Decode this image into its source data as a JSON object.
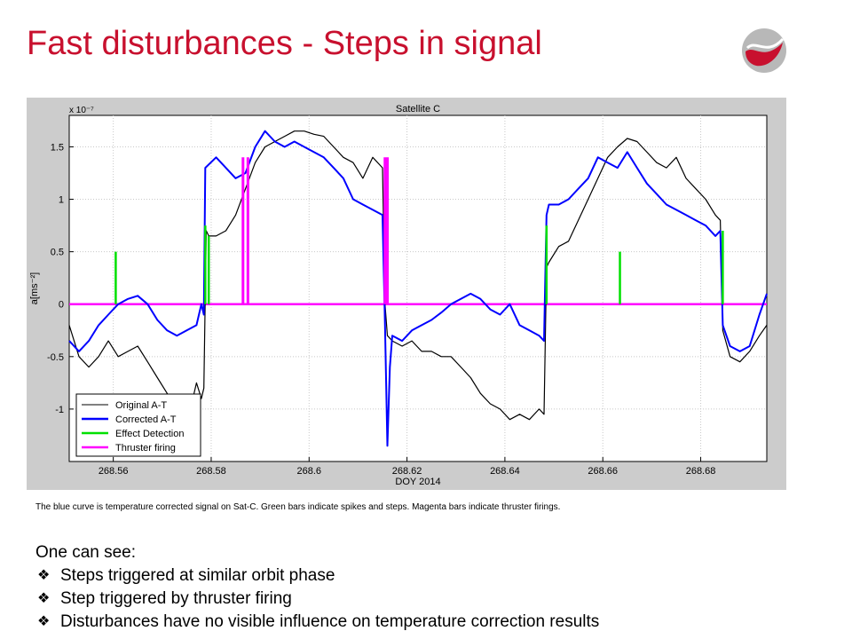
{
  "slide": {
    "title": "Fast disturbances - Steps in signal",
    "caption": "The blue curve is temperature corrected signal on Sat-C. Green bars indicate spikes and steps. Magenta bars indicate thruster firings.",
    "notes_heading": "One can see:",
    "bullets": [
      "Steps triggered at similar orbit phase",
      "Step triggered by thruster firing",
      "Disturbances have no visible influence on temperature correction results"
    ],
    "bullet_icon": "diamond-bullet-icon",
    "logo_icon": "swoosh-logo-icon"
  },
  "colors": {
    "title": "#c8102e",
    "original": "#000000",
    "corrected": "#0000ff",
    "effect": "#00e000",
    "thruster": "#ff00ff"
  },
  "chart_data": {
    "type": "line",
    "title": "Satellite C",
    "xlabel": "DOY 2014",
    "ylabel": "a[ms⁻²]",
    "y_exponent_label": "x 10⁻⁷",
    "y_scale": 1e-07,
    "xlim": [
      268.551,
      268.6935
    ],
    "ylim": [
      -1.5,
      1.8
    ],
    "xticks": [
      268.56,
      268.58,
      268.6,
      268.62,
      268.64,
      268.66,
      268.68
    ],
    "xtick_labels": [
      "268.56",
      "268.58",
      "268.6",
      "268.62",
      "268.64",
      "268.66",
      "268.68"
    ],
    "yticks": [
      -1,
      -0.5,
      0,
      0.5,
      1,
      1.5
    ],
    "ytick_labels": [
      "-1",
      "-0.5",
      "0",
      "0.5",
      "1",
      "1.5"
    ],
    "grid": true,
    "legend_position": "bottom-left",
    "legend": [
      "Original A-T",
      "Corrected A-T",
      "Effect Detection",
      "Thruster firing"
    ],
    "series": [
      {
        "name": "Original A-T",
        "points": [
          [
            268.551,
            -0.2
          ],
          [
            268.553,
            -0.5
          ],
          [
            268.555,
            -0.6
          ],
          [
            268.557,
            -0.5
          ],
          [
            268.559,
            -0.35
          ],
          [
            268.561,
            -0.5
          ],
          [
            268.563,
            -0.45
          ],
          [
            268.565,
            -0.4
          ],
          [
            268.567,
            -0.55
          ],
          [
            268.569,
            -0.7
          ],
          [
            268.571,
            -0.85
          ],
          [
            268.573,
            -1.0
          ],
          [
            268.575,
            -1.1
          ],
          [
            268.576,
            -0.95
          ],
          [
            268.577,
            -0.75
          ],
          [
            268.578,
            -0.9
          ],
          [
            268.5785,
            -0.8
          ],
          [
            268.579,
            0.7
          ],
          [
            268.5795,
            0.65
          ],
          [
            268.581,
            0.65
          ],
          [
            268.583,
            0.7
          ],
          [
            268.585,
            0.85
          ],
          [
            268.587,
            1.1
          ],
          [
            268.589,
            1.35
          ],
          [
            268.591,
            1.5
          ],
          [
            268.593,
            1.55
          ],
          [
            268.595,
            1.6
          ],
          [
            268.597,
            1.65
          ],
          [
            268.599,
            1.65
          ],
          [
            268.601,
            1.62
          ],
          [
            268.603,
            1.6
          ],
          [
            268.605,
            1.5
          ],
          [
            268.607,
            1.4
          ],
          [
            268.609,
            1.35
          ],
          [
            268.611,
            1.2
          ],
          [
            268.613,
            1.4
          ],
          [
            268.615,
            1.3
          ],
          [
            268.6155,
            0.0
          ],
          [
            268.616,
            -0.3
          ],
          [
            268.617,
            -0.35
          ],
          [
            268.619,
            -0.4
          ],
          [
            268.621,
            -0.35
          ],
          [
            268.623,
            -0.45
          ],
          [
            268.625,
            -0.45
          ],
          [
            268.627,
            -0.5
          ],
          [
            268.629,
            -0.5
          ],
          [
            268.631,
            -0.6
          ],
          [
            268.633,
            -0.7
          ],
          [
            268.635,
            -0.85
          ],
          [
            268.637,
            -0.95
          ],
          [
            268.639,
            -1.0
          ],
          [
            268.641,
            -1.1
          ],
          [
            268.643,
            -1.05
          ],
          [
            268.645,
            -1.1
          ],
          [
            268.647,
            -1.0
          ],
          [
            268.648,
            -1.05
          ],
          [
            268.6485,
            0.35
          ],
          [
            268.649,
            0.4
          ],
          [
            268.651,
            0.55
          ],
          [
            268.653,
            0.6
          ],
          [
            268.655,
            0.8
          ],
          [
            268.657,
            1.0
          ],
          [
            268.659,
            1.2
          ],
          [
            268.661,
            1.4
          ],
          [
            268.663,
            1.5
          ],
          [
            268.665,
            1.58
          ],
          [
            268.667,
            1.55
          ],
          [
            268.669,
            1.45
          ],
          [
            268.671,
            1.35
          ],
          [
            268.673,
            1.3
          ],
          [
            268.675,
            1.4
          ],
          [
            268.677,
            1.2
          ],
          [
            268.679,
            1.1
          ],
          [
            268.681,
            1.0
          ],
          [
            268.683,
            0.85
          ],
          [
            268.684,
            0.8
          ],
          [
            268.6845,
            -0.25
          ],
          [
            268.686,
            -0.5
          ],
          [
            268.688,
            -0.55
          ],
          [
            268.69,
            -0.45
          ],
          [
            268.692,
            -0.3
          ],
          [
            268.6935,
            -0.2
          ]
        ]
      },
      {
        "name": "Corrected A-T",
        "points": [
          [
            268.551,
            -0.35
          ],
          [
            268.553,
            -0.45
          ],
          [
            268.555,
            -0.35
          ],
          [
            268.557,
            -0.2
          ],
          [
            268.559,
            -0.1
          ],
          [
            268.561,
            0.0
          ],
          [
            268.563,
            0.05
          ],
          [
            268.565,
            0.08
          ],
          [
            268.567,
            0.0
          ],
          [
            268.569,
            -0.15
          ],
          [
            268.571,
            -0.25
          ],
          [
            268.573,
            -0.3
          ],
          [
            268.575,
            -0.25
          ],
          [
            268.577,
            -0.2
          ],
          [
            268.578,
            0.0
          ],
          [
            268.5785,
            -0.1
          ],
          [
            268.5788,
            1.3
          ],
          [
            268.581,
            1.4
          ],
          [
            268.583,
            1.3
          ],
          [
            268.585,
            1.2
          ],
          [
            268.587,
            1.25
          ],
          [
            268.589,
            1.5
          ],
          [
            268.591,
            1.65
          ],
          [
            268.593,
            1.55
          ],
          [
            268.595,
            1.5
          ],
          [
            268.597,
            1.55
          ],
          [
            268.599,
            1.5
          ],
          [
            268.601,
            1.45
          ],
          [
            268.603,
            1.4
          ],
          [
            268.605,
            1.3
          ],
          [
            268.607,
            1.2
          ],
          [
            268.609,
            1.0
          ],
          [
            268.611,
            0.95
          ],
          [
            268.613,
            0.9
          ],
          [
            268.615,
            0.85
          ],
          [
            268.6155,
            -0.2
          ],
          [
            268.616,
            -1.35
          ],
          [
            268.6165,
            -0.6
          ],
          [
            268.617,
            -0.3
          ],
          [
            268.619,
            -0.35
          ],
          [
            268.621,
            -0.25
          ],
          [
            268.623,
            -0.2
          ],
          [
            268.625,
            -0.15
          ],
          [
            268.627,
            -0.08
          ],
          [
            268.629,
            0.0
          ],
          [
            268.631,
            0.05
          ],
          [
            268.633,
            0.1
          ],
          [
            268.635,
            0.05
          ],
          [
            268.637,
            -0.05
          ],
          [
            268.639,
            -0.1
          ],
          [
            268.641,
            0.0
          ],
          [
            268.643,
            -0.2
          ],
          [
            268.645,
            -0.25
          ],
          [
            268.647,
            -0.3
          ],
          [
            268.648,
            -0.35
          ],
          [
            268.6485,
            0.85
          ],
          [
            268.649,
            0.95
          ],
          [
            268.651,
            0.95
          ],
          [
            268.653,
            1.0
          ],
          [
            268.655,
            1.1
          ],
          [
            268.657,
            1.2
          ],
          [
            268.659,
            1.4
          ],
          [
            268.661,
            1.35
          ],
          [
            268.663,
            1.3
          ],
          [
            268.665,
            1.45
          ],
          [
            268.667,
            1.3
          ],
          [
            268.669,
            1.15
          ],
          [
            268.671,
            1.05
          ],
          [
            268.673,
            0.95
          ],
          [
            268.675,
            0.9
          ],
          [
            268.677,
            0.85
          ],
          [
            268.679,
            0.8
          ],
          [
            268.681,
            0.75
          ],
          [
            268.683,
            0.65
          ],
          [
            268.684,
            0.7
          ],
          [
            268.6845,
            -0.2
          ],
          [
            268.686,
            -0.4
          ],
          [
            268.688,
            -0.45
          ],
          [
            268.69,
            -0.4
          ],
          [
            268.692,
            -0.1
          ],
          [
            268.6935,
            0.1
          ]
        ]
      },
      {
        "name": "Effect Detection",
        "bars": [
          [
            268.5605,
            0.5
          ],
          [
            268.5788,
            0.75
          ],
          [
            268.5795,
            0.65
          ],
          [
            268.6485,
            0.75
          ],
          [
            268.6635,
            0.5
          ],
          [
            268.6845,
            0.7
          ]
        ]
      },
      {
        "name": "Thruster firing",
        "baseline": 0,
        "bars": [
          [
            268.5865,
            1.4
          ],
          [
            268.5875,
            1.4
          ],
          [
            268.6155,
            1.4
          ],
          [
            268.616,
            1.4
          ]
        ]
      }
    ]
  }
}
